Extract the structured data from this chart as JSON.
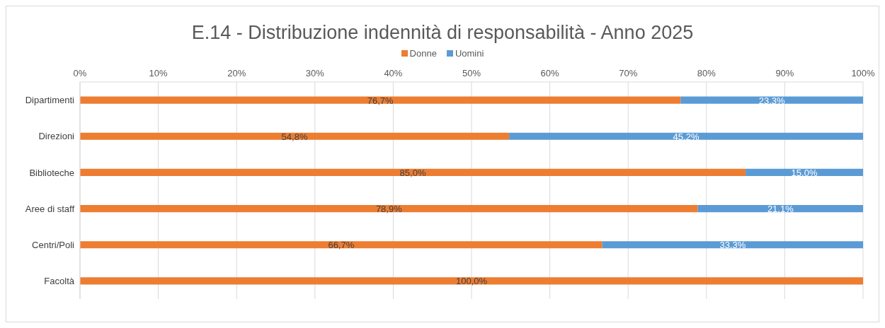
{
  "chart_data": {
    "type": "bar",
    "orientation": "horizontal",
    "stacked": true,
    "title": "E.14 - Distribuzione indennità di responsabilità - Anno 2025",
    "categories": [
      "Dipartimenti",
      "Direzioni",
      "Biblioteche",
      "Aree di staff",
      "Centri/Poli",
      "Facoltà"
    ],
    "series": [
      {
        "name": "Donne",
        "color": "#ed7d31",
        "values": [
          76.7,
          54.8,
          85.0,
          78.9,
          66.7,
          100.0
        ],
        "value_labels": [
          "76,7%",
          "54,8%",
          "85,0%",
          "78,9%",
          "66,7%",
          "100,0%"
        ]
      },
      {
        "name": "Uomini",
        "color": "#5b9bd5",
        "values": [
          23.3,
          45.2,
          15.0,
          21.1,
          33.3,
          0
        ],
        "value_labels": [
          "23,3%",
          "45,2%",
          "15,0%",
          "21,1%",
          "33,3%",
          null
        ]
      }
    ],
    "xlim": [
      0,
      100
    ],
    "xticks": [
      {
        "value": 0,
        "label": "0%"
      },
      {
        "value": 10,
        "label": "10%"
      },
      {
        "value": 20,
        "label": "20%"
      },
      {
        "value": 30,
        "label": "30%"
      },
      {
        "value": 40,
        "label": "40%"
      },
      {
        "value": 50,
        "label": "50%"
      },
      {
        "value": 60,
        "label": "60%"
      },
      {
        "value": 70,
        "label": "70%"
      },
      {
        "value": 80,
        "label": "80%"
      },
      {
        "value": 90,
        "label": "90%"
      },
      {
        "value": 100,
        "label": "100%"
      }
    ],
    "grid": "x",
    "legend": "top"
  }
}
